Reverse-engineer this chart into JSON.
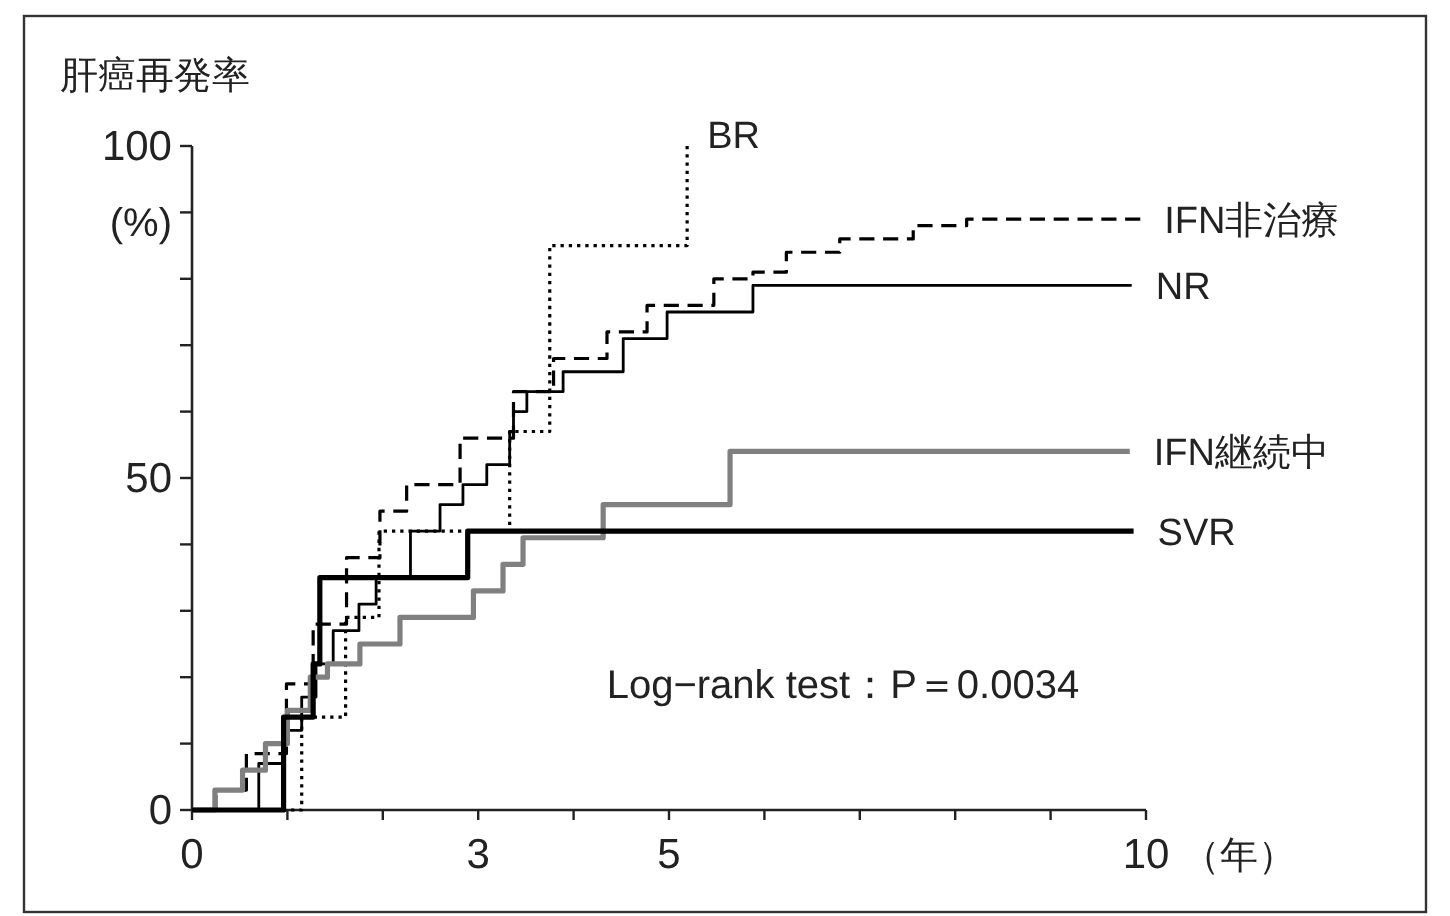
{
  "chart_data": {
    "type": "step",
    "ylabel": "肝癌再発率",
    "xlabel": "（年）",
    "annotations": [
      "(%)",
      "Log−rank test：P＝0.0034"
    ],
    "xlim": [
      0,
      10
    ],
    "ylim": [
      0,
      100
    ],
    "xticks": [
      0,
      {
        "value": 1,
        "label": null
      },
      {
        "value": 2,
        "label": null
      },
      3,
      {
        "value": 4,
        "label": null
      },
      5,
      {
        "value": 6,
        "label": null
      },
      {
        "value": 7,
        "label": null
      },
      {
        "value": 8,
        "label": null
      },
      {
        "value": 9,
        "label": null
      },
      10
    ],
    "yticks": [
      0,
      {
        "value": 10,
        "label": null
      },
      {
        "value": 20,
        "label": null
      },
      {
        "value": 30,
        "label": null
      },
      {
        "value": 40,
        "label": null
      },
      50,
      {
        "value": 60,
        "label": null
      },
      {
        "value": 70,
        "label": null
      },
      {
        "value": 80,
        "label": null
      },
      {
        "value": 90,
        "label": null
      },
      100
    ],
    "grid": false,
    "legend": false,
    "marker": "none",
    "series": [
      {
        "name": "BR",
        "color": "#000000",
        "line_style": "dotted",
        "x": [
          0,
          1.15,
          1.61,
          1.96,
          3.33,
          3.75,
          5.19
        ],
        "values": [
          0,
          14,
          29,
          42,
          57,
          85,
          100
        ]
      },
      {
        "name": "IFN非治療",
        "color": "#000000",
        "line_style": "dashed",
        "x": [
          0,
          0.25,
          0.57,
          0.99,
          1.27,
          1.62,
          1.97,
          2.25,
          2.81,
          3.37,
          3.79,
          4.35,
          4.77,
          5.47,
          5.88,
          6.23,
          6.79,
          7.56,
          8.12,
          9.94
        ],
        "values": [
          0,
          3,
          8.5,
          19,
          28,
          38,
          45,
          49,
          56,
          63,
          68,
          72,
          76,
          80,
          81,
          84,
          86,
          88,
          89,
          89
        ]
      },
      {
        "name": "NR",
        "color": "#000000",
        "line_style": "solid",
        "x": [
          0,
          0.7,
          0.95,
          1.15,
          1.3,
          1.48,
          1.75,
          1.93,
          2.29,
          2.6,
          2.84,
          3.09,
          3.33,
          3.37,
          3.51,
          3.89,
          4.52,
          4.98,
          5.88,
          9.85
        ],
        "values": [
          0,
          7,
          12,
          17,
          22,
          27,
          31,
          35,
          42,
          46,
          49,
          52,
          57,
          60,
          63,
          66,
          71,
          75,
          79,
          79
        ]
      },
      {
        "name": "IFN継続中",
        "color": "#808080",
        "line_style": "solid",
        "x": [
          0,
          0.24,
          0.53,
          0.77,
          1.0,
          1.24,
          1.42,
          1.76,
          2.18,
          2.95,
          3.26,
          3.47,
          4.31,
          5.64,
          9.83
        ],
        "values": [
          0,
          3,
          6,
          10,
          15,
          20,
          22,
          25,
          29,
          33,
          37,
          41,
          46,
          54,
          54
        ]
      },
      {
        "name": "SVR",
        "color": "#000000",
        "line_style": "solid",
        "x": [
          0,
          0.96,
          1.27,
          1.34,
          2.89,
          9.87
        ],
        "values": [
          0,
          14,
          22,
          35,
          42,
          42
        ]
      }
    ]
  }
}
